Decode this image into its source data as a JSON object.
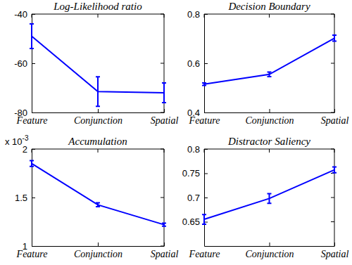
{
  "chart_data": [
    {
      "type": "line",
      "title": "Log-Likelihood ratio",
      "categories": [
        "Feature",
        "Conjunction",
        "Spatial"
      ],
      "values": [
        -49,
        -71.5,
        -72
      ],
      "errors": [
        5,
        6,
        4
      ],
      "color": "#0000ff",
      "ylim": [
        -80,
        -40
      ],
      "yticks": [
        -80,
        -60,
        -40
      ]
    },
    {
      "type": "line",
      "title": "Decision Boundary",
      "categories": [
        "Feature",
        "Conjunction",
        "Spatial"
      ],
      "values": [
        0.515,
        0.555,
        0.702
      ],
      "errors": [
        0.005,
        0.009,
        0.012
      ],
      "color": "#0000ff",
      "ylim": [
        0.4,
        0.8
      ],
      "yticks": [
        0.4,
        0.6,
        0.8
      ]
    },
    {
      "type": "line",
      "title": "Accumulation",
      "categories": [
        "Feature",
        "Conjunction",
        "Spatial"
      ],
      "values": [
        1.85,
        1.425,
        1.22
      ],
      "errors": [
        0.03,
        0.02,
        0.015
      ],
      "color": "#0000ff",
      "ylim": [
        1,
        2
      ],
      "yticks": [
        1,
        1.5,
        2
      ],
      "annotations": [
        {
          "text": "x 10",
          "superscript": "-3"
        }
      ]
    },
    {
      "type": "line",
      "title": "Distractor Saliency",
      "categories": [
        "Feature",
        "Conjunction",
        "Spatial"
      ],
      "values": [
        0.655,
        0.698,
        0.757
      ],
      "errors": [
        0.01,
        0.01,
        0.006
      ],
      "color": "#0000ff",
      "ylim": [
        0.6,
        0.8
      ],
      "yticks": [
        0.65,
        0.7,
        0.75,
        0.8
      ]
    }
  ]
}
